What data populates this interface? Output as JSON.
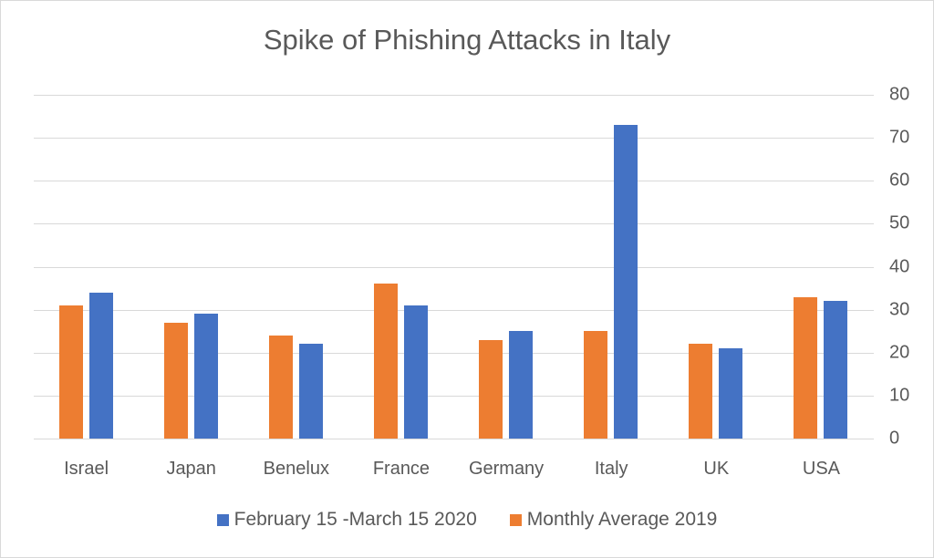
{
  "chart_data": {
    "type": "bar",
    "title": "Spike of Phishing Attacks in Italy",
    "xlabel": "",
    "ylabel": "",
    "ylim": [
      0,
      80
    ],
    "yticks": [
      0,
      10,
      20,
      30,
      40,
      50,
      60,
      70,
      80
    ],
    "y_axis_position": "right",
    "grid": true,
    "legend_position": "bottom",
    "categories": [
      "Israel",
      "Japan",
      "Benelux",
      "France",
      "Germany",
      "Italy",
      "UK",
      "USA"
    ],
    "series": [
      {
        "name": "Monthly Average 2019",
        "color": "#ED7D31",
        "values": [
          31,
          27,
          24,
          36,
          23,
          25,
          22,
          33
        ]
      },
      {
        "name": "February 15 -March 15 2020",
        "color": "#4472C4",
        "values": [
          34,
          29,
          22,
          31,
          25,
          73,
          21,
          32
        ]
      }
    ],
    "legend": [
      {
        "label": "February 15 -March 15 2020",
        "color": "#4472C4"
      },
      {
        "label": "Monthly Average 2019",
        "color": "#ED7D31"
      }
    ]
  }
}
